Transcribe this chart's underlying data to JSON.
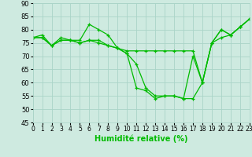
{
  "xlabel": "Humidité relative (%)",
  "background_color": "#ceeae0",
  "grid_color": "#aad4c8",
  "line_color": "#00bb00",
  "ylim": [
    45,
    90
  ],
  "yticks": [
    45,
    50,
    55,
    60,
    65,
    70,
    75,
    80,
    85,
    90
  ],
  "xlim": [
    0,
    23
  ],
  "xticks": [
    0,
    1,
    2,
    3,
    4,
    5,
    6,
    7,
    8,
    9,
    10,
    11,
    12,
    13,
    14,
    15,
    16,
    17,
    18,
    19,
    20,
    21,
    22,
    23
  ],
  "series": [
    [
      77,
      78,
      74,
      77,
      76,
      76,
      82,
      80,
      78,
      73,
      72,
      72,
      72,
      72,
      72,
      72,
      72,
      72,
      60,
      75,
      77,
      78,
      81,
      84
    ],
    [
      77,
      77,
      74,
      76,
      76,
      75,
      76,
      76,
      74,
      73,
      71,
      58,
      57,
      54,
      55,
      55,
      54,
      70,
      60,
      75,
      80,
      78,
      81,
      84
    ],
    [
      77,
      77,
      74,
      76,
      76,
      75,
      76,
      75,
      74,
      73,
      71,
      67,
      58,
      55,
      55,
      55,
      54,
      54,
      60,
      75,
      80,
      78,
      81,
      84
    ]
  ]
}
